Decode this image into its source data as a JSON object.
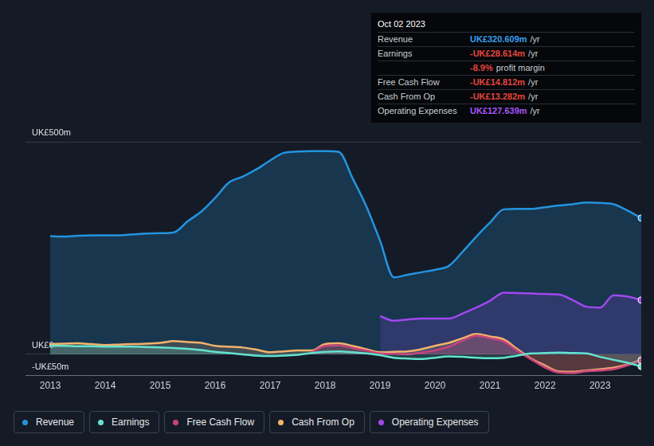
{
  "chart_data": {
    "type": "area",
    "x": [
      2013,
      2013.25,
      2013.5,
      2013.75,
      2014,
      2014.25,
      2014.5,
      2014.75,
      2015,
      2015.25,
      2015.5,
      2015.75,
      2016,
      2016.25,
      2016.5,
      2016.75,
      2017,
      2017.25,
      2017.5,
      2017.75,
      2018,
      2018.25,
      2018.5,
      2018.75,
      2019,
      2019.25,
      2019.5,
      2019.75,
      2020,
      2020.25,
      2020.5,
      2020.75,
      2021,
      2021.25,
      2021.5,
      2021.75,
      2022,
      2022.25,
      2022.5,
      2022.75,
      2023,
      2023.25,
      2023.5,
      2023.75
    ],
    "series": [
      {
        "name": "Revenue",
        "color": "#2394df",
        "values": [
          278,
          277,
          279,
          280,
          280,
          280,
          282,
          284,
          285,
          287,
          313,
          336,
          368,
          404,
          418,
          435,
          456,
          474,
          477,
          478,
          478,
          476,
          414,
          348,
          267,
          181,
          187,
          193,
          199,
          208,
          241,
          277,
          310,
          341,
          342,
          342,
          346,
          350,
          353,
          357,
          356,
          353,
          338,
          320.6
        ]
      },
      {
        "name": "Earnings",
        "color": "#63e3d0",
        "values": [
          20,
          20,
          19,
          19,
          18,
          18,
          18,
          17,
          16,
          15,
          13,
          10,
          6,
          3,
          0,
          -3,
          -4,
          -3,
          -1,
          3,
          6,
          7,
          5,
          2,
          -2,
          -8,
          -10,
          -11,
          -8,
          -5,
          -6,
          -8,
          -9,
          -8,
          -3,
          2,
          3,
          4,
          3,
          2,
          -6,
          -13,
          -20,
          -28.6
        ]
      },
      {
        "name": "Free Cash Flow",
        "color": "#c9437e",
        "values": [
          null,
          null,
          null,
          null,
          null,
          null,
          null,
          null,
          null,
          null,
          null,
          null,
          null,
          null,
          null,
          null,
          null,
          null,
          null,
          4,
          20,
          21,
          15,
          9,
          2,
          1,
          0,
          4,
          9,
          18,
          32,
          44,
          38,
          30,
          8,
          -12,
          -31,
          -43,
          -44,
          -40,
          -38,
          -35,
          -26,
          -14.8
        ]
      },
      {
        "name": "Cash From Op",
        "color": "#f2b36b",
        "values": [
          24,
          25,
          26,
          24,
          22,
          23,
          24,
          25,
          27,
          31,
          29,
          27,
          20,
          18,
          16,
          11,
          5,
          7,
          9,
          9,
          24,
          26,
          20,
          12,
          5,
          6,
          7,
          12,
          20,
          27,
          38,
          48,
          42,
          35,
          12,
          -10,
          -26,
          -40,
          -41,
          -38,
          -35,
          -31,
          -24,
          -13.3
        ]
      },
      {
        "name": "Operating Expenses",
        "color": "#a148f0",
        "values": [
          null,
          null,
          null,
          null,
          null,
          null,
          null,
          null,
          null,
          null,
          null,
          null,
          null,
          null,
          null,
          null,
          null,
          null,
          null,
          null,
          null,
          null,
          null,
          null,
          90,
          79,
          82,
          84,
          84,
          84,
          96,
          110,
          126,
          145,
          144,
          143,
          142,
          141,
          128,
          112,
          110,
          139,
          136,
          127.6
        ]
      }
    ],
    "xlim": [
      2012.55,
      2023.75
    ],
    "xticks": [
      2013,
      2014,
      2015,
      2016,
      2017,
      2018,
      2019,
      2020,
      2021,
      2022,
      2023
    ],
    "ylim": [
      -50,
      500
    ],
    "yticks": [
      {
        "value": -50,
        "label": "-UK£50m"
      },
      {
        "value": 0,
        "label": "UK£0"
      },
      {
        "value": 500,
        "label": "UK£500m"
      }
    ],
    "grid": true,
    "legend": "bottom"
  },
  "tooltip": {
    "date": "Oct 02 2023",
    "rows": [
      {
        "label": "Revenue",
        "value": "UK£320.609m",
        "unit": "/yr",
        "color": "#3aa0f0"
      },
      {
        "label": "Earnings",
        "value": "-UK£28.614m",
        "unit": "/yr",
        "color": "#e5463f"
      },
      {
        "value": "-8.9%",
        "unit": "profit margin",
        "color": "#e5463f"
      },
      {
        "label": "Free Cash Flow",
        "value": "-UK£14.812m",
        "unit": "/yr",
        "color": "#e5463f"
      },
      {
        "label": "Cash From Op",
        "value": "-UK£13.282m",
        "unit": "/yr",
        "color": "#e5463f"
      },
      {
        "label": "Operating Expenses",
        "value": "UK£127.639m",
        "unit": "/yr",
        "color": "#a855f7"
      }
    ]
  }
}
